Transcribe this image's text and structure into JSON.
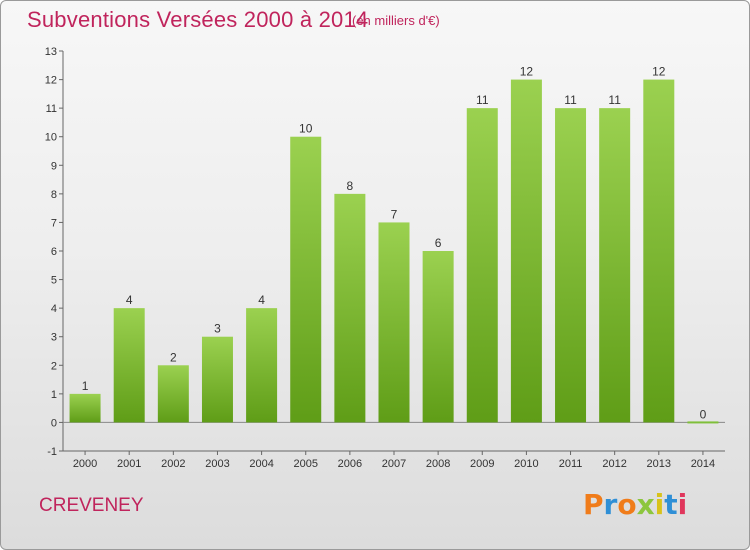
{
  "header": {
    "title": "Subventions Versées 2000 à 2014",
    "unit_note": "(en milliers d'€)"
  },
  "footer": {
    "commune": "CREVENEY",
    "brand": [
      "P",
      "r",
      "o",
      "x",
      "i",
      "t",
      "i"
    ],
    "brand_colors": [
      "#f07c1a",
      "#2f8fd6",
      "#f07c1a",
      "#8cc63e",
      "#d8c21a",
      "#2f8fd6",
      "#e0365c"
    ]
  },
  "colors": {
    "title": "#c0245c",
    "bar_light": "#9bd150",
    "bar_dark": "#5f9d17",
    "axis": "#555555"
  },
  "chart_data": {
    "type": "bar",
    "title": "Subventions Versées 2000 à 2014",
    "subtitle": "(en milliers d'€)",
    "categories": [
      "2000",
      "2001",
      "2002",
      "2003",
      "2004",
      "2005",
      "2006",
      "2007",
      "2008",
      "2009",
      "2010",
      "2011",
      "2012",
      "2013",
      "2014"
    ],
    "values": [
      1,
      4,
      2,
      3,
      4,
      10,
      8,
      7,
      6,
      11,
      12,
      11,
      11,
      12,
      0
    ],
    "data_labels": [
      "1",
      "4",
      "2",
      "3",
      "4",
      "10",
      "8",
      "7",
      "6",
      "11",
      "12",
      "11",
      "11",
      "12",
      "0"
    ],
    "y_ticks": [
      "-1",
      "0",
      "1",
      "2",
      "3",
      "4",
      "5",
      "6",
      "7",
      "8",
      "9",
      "10",
      "11",
      "12",
      "13"
    ],
    "ylim": [
      -1,
      13
    ],
    "xlabel": "",
    "ylabel": "",
    "grid": false,
    "legend": "none"
  }
}
